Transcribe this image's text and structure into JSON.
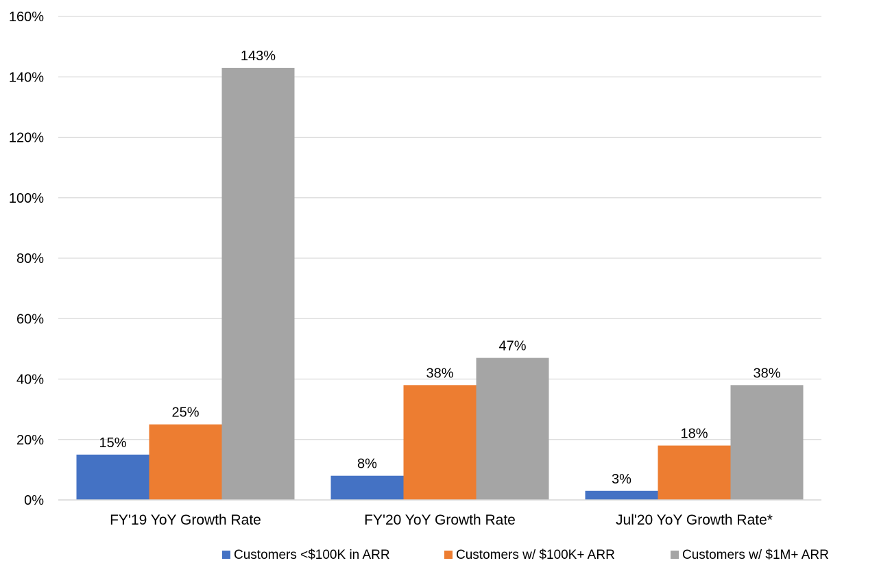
{
  "chart_data": {
    "type": "bar",
    "categories": [
      "FY'19 YoY Growth Rate",
      "FY'20 YoY Growth Rate",
      "Jul'20 YoY Growth Rate*"
    ],
    "series": [
      {
        "name": "Customers <$100K in ARR",
        "values": [
          15,
          8,
          3
        ],
        "labels": [
          "15%",
          "8%",
          "3%"
        ],
        "color": "#4472C4"
      },
      {
        "name": "Customers w/ $100K+ ARR",
        "values": [
          25,
          38,
          18
        ],
        "labels": [
          "25%",
          "38%",
          "18%"
        ],
        "color": "#ED7D31"
      },
      {
        "name": "Customers w/ $1M+ ARR",
        "values": [
          143,
          47,
          38
        ],
        "labels": [
          "143%",
          "47%",
          "38%"
        ],
        "color": "#A5A5A5"
      }
    ],
    "yticks": [
      0,
      20,
      40,
      60,
      80,
      100,
      120,
      140,
      160
    ],
    "ytick_labels": [
      "0%",
      "20%",
      "40%",
      "60%",
      "80%",
      "100%",
      "120%",
      "140%",
      "160%"
    ],
    "ylim": [
      0,
      160
    ],
    "grid": true,
    "gridline_color": "#D9D9D9",
    "legend_position": "bottom-right"
  }
}
